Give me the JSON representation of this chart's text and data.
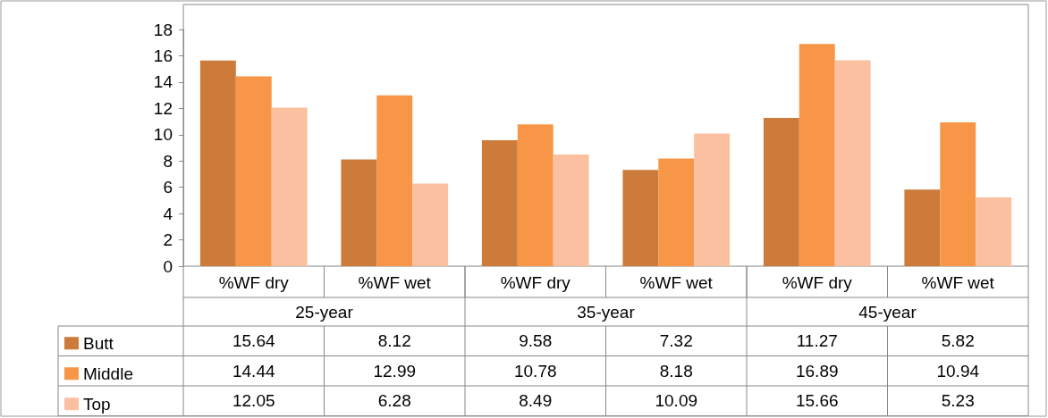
{
  "chart_data": {
    "type": "bar",
    "categories": [
      "%WF dry",
      "%WF wet",
      "%WF dry",
      "%WF wet",
      "%WF dry",
      "%WF wet"
    ],
    "series": [
      {
        "name": "Butt",
        "color": "#cd7b3a",
        "values": [
          15.64,
          8.12,
          9.58,
          7.32,
          11.27,
          5.82
        ]
      },
      {
        "name": "Middle",
        "color": "#f79646",
        "values": [
          14.44,
          12.99,
          10.78,
          8.18,
          16.89,
          10.94
        ]
      },
      {
        "name": "Top",
        "color": "#fac0a0",
        "values": [
          12.05,
          6.28,
          8.49,
          10.09,
          15.66,
          5.23
        ]
      }
    ],
    "ylim": [
      0,
      18
    ],
    "yticks": [
      0,
      2,
      4,
      6,
      8,
      10,
      12,
      14,
      16,
      18
    ],
    "grid": false,
    "legend": "bottom left",
    "data_labels": true,
    "annotations": [
      "25-year",
      "35-year",
      "45-year"
    ]
  }
}
